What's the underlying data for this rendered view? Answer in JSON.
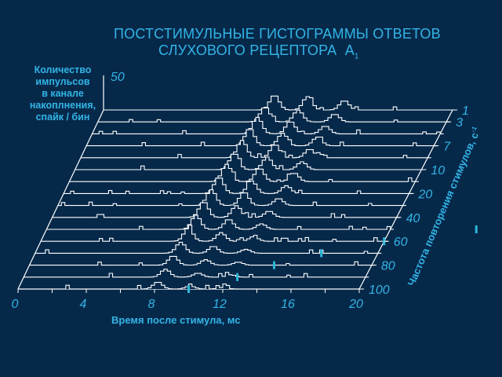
{
  "title_line1": "ПОСТСТИМУЛЬНЫЕ ГИСТОГРАММЫ ОТВЕТОВ",
  "title_line2": "СЛУХОВОГО РЕЦЕПТОРА",
  "title_a": "А",
  "title_sub": "1",
  "colors": {
    "background": "#06294a",
    "line": "#ffffff",
    "text": "#33b4e6",
    "marker": "#2bb8d8"
  },
  "chart_data": {
    "type": "waterfall",
    "ylabel_lines": [
      "Количество",
      "импульсов",
      "в канале",
      "накоплнения,",
      "спайк / бин"
    ],
    "ytick": "50",
    "xlabel": "Время после стимула, мс",
    "x_ticks": [
      "0",
      "4",
      "8",
      "12",
      "16",
      "20"
    ],
    "x_range": [
      0,
      20
    ],
    "zlabel": "Частота повторения стимулов, с",
    "zlabel_sup": "-1",
    "z_ticks": [
      "1",
      "3",
      "7",
      "10",
      "20",
      "40",
      "60",
      "80",
      "100"
    ],
    "series": [
      {
        "rate": 1,
        "peaks": [
          [
            9.8,
            19
          ],
          [
            11.7,
            17
          ],
          [
            13.8,
            12
          ]
        ],
        "marker_ms": null
      },
      {
        "rate": 2,
        "peaks": [
          [
            9.6,
            19
          ],
          [
            11.5,
            15
          ],
          [
            13.6,
            10
          ]
        ],
        "marker_ms": null
      },
      {
        "rate": 3,
        "peaks": [
          [
            9.5,
            21
          ],
          [
            11.4,
            16
          ],
          [
            13.4,
            10
          ]
        ],
        "marker_ms": null
      },
      {
        "rate": 5,
        "peaks": [
          [
            9.4,
            22
          ],
          [
            11.3,
            16
          ],
          [
            13.3,
            11
          ]
        ],
        "marker_ms": null
      },
      {
        "rate": 7,
        "peaks": [
          [
            9.3,
            22
          ],
          [
            11.2,
            17
          ],
          [
            13.2,
            11
          ]
        ],
        "marker_ms": null
      },
      {
        "rate": 8,
        "peaks": [
          [
            9.2,
            21
          ],
          [
            11.1,
            16
          ],
          [
            13.1,
            10
          ]
        ],
        "marker_ms": null
      },
      {
        "rate": 10,
        "peaks": [
          [
            9.1,
            22
          ],
          [
            11.0,
            17
          ],
          [
            13.0,
            11
          ]
        ],
        "marker_ms": null
      },
      {
        "rate": 15,
        "peaks": [
          [
            9.0,
            21
          ],
          [
            10.9,
            16
          ],
          [
            12.9,
            10
          ]
        ],
        "marker_ms": null
      },
      {
        "rate": 20,
        "peaks": [
          [
            8.9,
            20
          ],
          [
            10.8,
            17
          ],
          [
            12.8,
            9
          ]
        ],
        "marker_ms": null
      },
      {
        "rate": 30,
        "peaks": [
          [
            8.8,
            20
          ],
          [
            10.7,
            15
          ],
          [
            12.6,
            8
          ]
        ],
        "marker_ms": null
      },
      {
        "rate": 40,
        "peaks": [
          [
            8.7,
            18
          ],
          [
            10.6,
            13
          ],
          [
            12.5,
            7
          ]
        ],
        "marker_ms": 25
      },
      {
        "rate": 50,
        "peaks": [
          [
            8.6,
            17
          ],
          [
            10.5,
            11
          ],
          [
            12.4,
            6
          ]
        ],
        "marker_ms": 20
      },
      {
        "rate": 60,
        "peaks": [
          [
            8.5,
            14
          ],
          [
            10.4,
            9
          ],
          [
            12.3,
            5
          ]
        ],
        "marker_ms": 16.7
      },
      {
        "rate": 70,
        "peaks": [
          [
            8.4,
            12
          ],
          [
            10.3,
            7
          ],
          [
            12.2,
            4
          ]
        ],
        "marker_ms": 14.3
      },
      {
        "rate": 80,
        "peaks": [
          [
            8.3,
            10
          ],
          [
            10.2,
            5
          ],
          [
            12.1,
            3
          ]
        ],
        "marker_ms": 12.5
      },
      {
        "rate": 100,
        "peaks": [
          [
            8.2,
            9
          ],
          [
            10.1,
            4
          ],
          [
            12.0,
            2
          ]
        ],
        "marker_ms": 10
      }
    ]
  }
}
